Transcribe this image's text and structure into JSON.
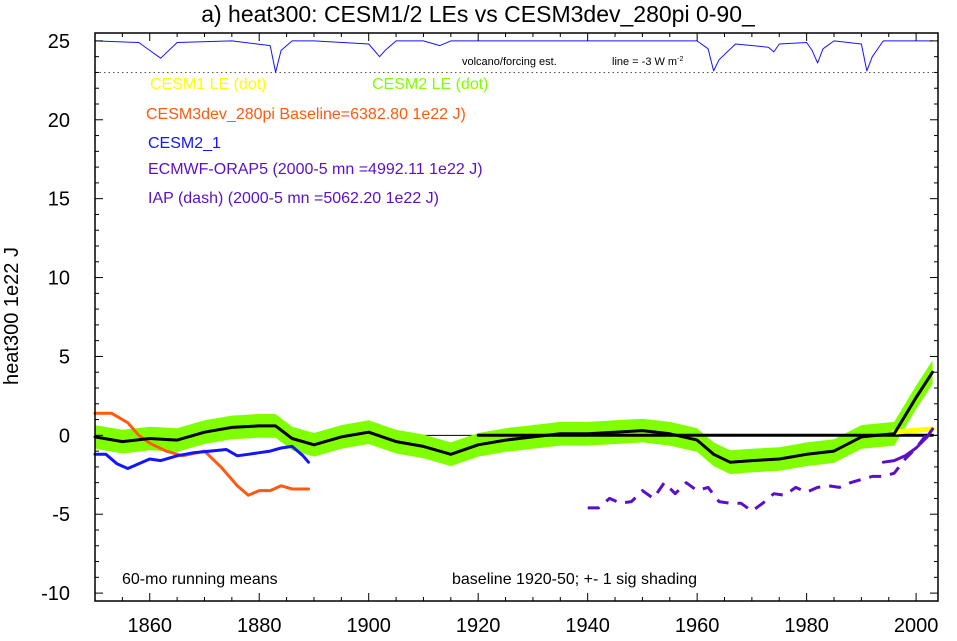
{
  "chart_data": {
    "type": "line",
    "title": "a) heat300: CESM1/2 LEs vs CESM3dev_280pi 0-90_",
    "ylabel": "heat300 1e22 J",
    "xlabel": "",
    "xlim": [
      1850,
      2004
    ],
    "ylim": [
      -10.5,
      25.5
    ],
    "xticks": [
      1860,
      1880,
      1900,
      1920,
      1940,
      1960,
      1980,
      2000
    ],
    "yticks": [
      -10,
      -5,
      0,
      5,
      10,
      15,
      20,
      25
    ],
    "ytick_labels": [
      "-10",
      "-5",
      "0",
      "5",
      "10",
      "15",
      "20",
      "25"
    ],
    "xtick_labels": [
      "1860",
      "1880",
      "1900",
      "1920",
      "1940",
      "1960",
      "1980",
      "2000"
    ],
    "grid": false,
    "legend": [
      {
        "label": "CESM1 LE (dot)",
        "color": "#ffff00"
      },
      {
        "label": "CESM2 LE (dot)",
        "color": "#7fff00"
      },
      {
        "label": "CESM3dev_280pi Baseline=6382.80 1e22 J)",
        "color": "#ff5a10"
      },
      {
        "label": "CESM2_1",
        "color": "#1414ff"
      },
      {
        "label": "ECMWF-ORAP5 (2000-5 mn =4992.11 1e22 J)",
        "color": "#5a10c8"
      },
      {
        "label": "IAP (dash) (2000-5 mn =5062.20 1e22 J)",
        "color": "#5a10c8"
      }
    ],
    "annotations": {
      "volcano_label": "volcano/forcing est.",
      "line_label": "line = -3 W m",
      "line_label_sup": "-2",
      "bottom_left": "60-mo running means",
      "bottom_right": "baseline 1920-50; +- 1 sig shading"
    },
    "volcano_reference_y": 23,
    "series": [
      {
        "name": "CESM2 LE spread (+- 1 sig)",
        "role": "band",
        "color": "#7fff00",
        "x": [
          1850,
          1855,
          1860,
          1865,
          1870,
          1875,
          1880,
          1883,
          1886,
          1890,
          1895,
          1900,
          1905,
          1910,
          1915,
          1920,
          1925,
          1930,
          1935,
          1940,
          1945,
          1950,
          1955,
          1960,
          1963,
          1966,
          1970,
          1975,
          1980,
          1985,
          1990,
          1993,
          1996,
          2000,
          2003
        ],
        "values": [
          -0.1,
          -0.4,
          -0.2,
          -0.3,
          0.2,
          0.5,
          0.6,
          0.6,
          -0.2,
          -0.6,
          -0.1,
          0.2,
          -0.4,
          -0.7,
          -1.2,
          -0.6,
          -0.3,
          -0.1,
          0.1,
          0.1,
          0.2,
          0.3,
          0.1,
          -0.3,
          -1.2,
          -1.7,
          -1.6,
          -1.5,
          -1.2,
          -1.0,
          -0.1,
          0.0,
          0.1,
          2.4,
          4.0
        ],
        "spread": 0.75
      },
      {
        "name": "CESM2 LE mean",
        "role": "mean",
        "color": "#000000",
        "x": [
          1850,
          1855,
          1860,
          1865,
          1870,
          1875,
          1880,
          1883,
          1886,
          1890,
          1895,
          1900,
          1905,
          1910,
          1915,
          1920,
          1925,
          1930,
          1935,
          1940,
          1945,
          1950,
          1955,
          1960,
          1963,
          1966,
          1970,
          1975,
          1980,
          1985,
          1990,
          1993,
          1996,
          2000,
          2003
        ],
        "values": [
          -0.1,
          -0.4,
          -0.2,
          -0.3,
          0.2,
          0.5,
          0.6,
          0.6,
          -0.2,
          -0.6,
          -0.1,
          0.2,
          -0.4,
          -0.7,
          -1.2,
          -0.6,
          -0.3,
          -0.1,
          0.1,
          0.1,
          0.2,
          0.3,
          0.1,
          -0.3,
          -1.2,
          -1.7,
          -1.6,
          -1.5,
          -1.2,
          -1.0,
          -0.1,
          0.0,
          0.1,
          2.4,
          4.0
        ]
      },
      {
        "name": "CESM3dev_280pi",
        "color": "#ff5a10",
        "x": [
          1850,
          1853,
          1856,
          1858,
          1860,
          1863,
          1866,
          1870,
          1873,
          1876,
          1878,
          1880,
          1882,
          1884,
          1886,
          1888,
          1889
        ],
        "values": [
          1.4,
          1.4,
          0.8,
          0.0,
          -0.5,
          -1.0,
          -1.3,
          -1.0,
          -2.0,
          -3.2,
          -3.8,
          -3.5,
          -3.5,
          -3.2,
          -3.4,
          -3.4,
          -3.4
        ]
      },
      {
        "name": "CESM2_1",
        "color": "#1414ff",
        "x": [
          1850,
          1852,
          1854,
          1856,
          1858,
          1860,
          1862,
          1865,
          1868,
          1871,
          1874,
          1876,
          1878,
          1880,
          1882,
          1884,
          1886,
          1888,
          1889
        ],
        "values": [
          -1.2,
          -1.2,
          -1.8,
          -2.1,
          -1.8,
          -1.5,
          -1.6,
          -1.3,
          -1.1,
          -1.0,
          -0.9,
          -1.3,
          -1.2,
          -1.1,
          -1.0,
          -0.8,
          -0.7,
          -1.3,
          -1.7
        ]
      },
      {
        "name": "CESM2 LE baseline segment",
        "color": "#000000",
        "x": [
          1920,
          2003
        ],
        "values": [
          0.0,
          0.0
        ]
      },
      {
        "name": "CESM1 LE",
        "color": "#ffff00",
        "x": [
          1996,
          1999,
          2003
        ],
        "values": [
          0.2,
          0.3,
          0.4
        ]
      },
      {
        "name": "ECMWF-ORAP5",
        "color": "#5a10c8",
        "x": [
          1994,
          1996,
          1998,
          2000,
          2002,
          2003
        ],
        "values": [
          -1.7,
          -1.6,
          -1.3,
          -0.8,
          -0.1,
          0.4
        ]
      },
      {
        "name": "IAP",
        "color": "#5a10c8",
        "dashed": true,
        "x": [
          1940,
          1942,
          1944,
          1946,
          1948,
          1950,
          1952,
          1954,
          1956,
          1958,
          1960,
          1962,
          1964,
          1966,
          1968,
          1970,
          1972,
          1974,
          1976,
          1978,
          1980,
          1982,
          1984,
          1986,
          1988,
          1990,
          1992,
          1994,
          1996,
          1998,
          2000,
          2002,
          2003
        ],
        "values": [
          -4.6,
          -4.6,
          -4.0,
          -4.3,
          -4.2,
          -3.5,
          -4.0,
          -3.0,
          -3.7,
          -3.0,
          -3.5,
          -3.3,
          -4.2,
          -4.3,
          -4.3,
          -4.8,
          -4.3,
          -3.7,
          -3.8,
          -3.3,
          -3.6,
          -3.3,
          -3.2,
          -3.3,
          -3.0,
          -2.8,
          -2.6,
          -2.6,
          -2.4,
          -1.5,
          -0.8,
          0.1,
          0.3
        ]
      },
      {
        "name": "volcano/forcing est.",
        "color": "#1414ff",
        "x": [
          1850,
          1858,
          1860,
          1862,
          1865,
          1875,
          1882,
          1883,
          1884,
          1886,
          1890,
          1900,
          1902,
          1903,
          1905,
          1910,
          1913,
          1915,
          1920,
          1940,
          1950,
          1955,
          1960,
          1962,
          1963,
          1964,
          1967,
          1973,
          1974,
          1975,
          1980,
          1981,
          1982,
          1983,
          1985,
          1990,
          1991,
          1992,
          1994,
          2003
        ],
        "values": [
          25,
          24.9,
          24.4,
          23.9,
          24.9,
          25,
          24.7,
          23.0,
          24.4,
          25,
          25,
          24.8,
          24.0,
          24.4,
          25,
          25,
          24.7,
          25,
          25,
          25,
          25,
          25,
          25,
          24.5,
          23.1,
          23.8,
          24.8,
          24.6,
          24.3,
          24.8,
          24.9,
          24.4,
          23.6,
          24.5,
          25,
          24.8,
          23.1,
          24.0,
          25,
          25
        ]
      }
    ]
  }
}
